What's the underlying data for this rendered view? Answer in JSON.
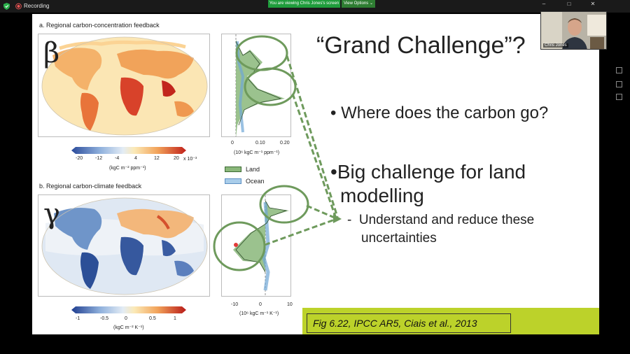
{
  "topbar": {
    "recording_label": "Recording",
    "viewing_banner": "You are viewing Chris Jones's screen",
    "view_options_label": "View Options ⌄"
  },
  "participant": {
    "name": "Chris Jones"
  },
  "slide": {
    "panel_a": {
      "title": "a. Regional carbon-concentration feedback",
      "greek": "β",
      "colorbar_ticks": [
        "-20",
        "-12",
        "-4",
        "4",
        "12",
        "20"
      ],
      "colorbar_scale": "x 10⁻³",
      "colorbar_unit": "(kgC m⁻² ppm⁻¹)",
      "lat_ticks": [
        "0",
        "0.10",
        "0.20"
      ],
      "lat_unit": "(10⁶ kgC m⁻¹ ppm⁻¹)"
    },
    "panel_b": {
      "title": "b. Regional carbon-climate feedback",
      "greek": "γ",
      "colorbar_ticks": [
        "-1",
        "-0.5",
        "0",
        "0.5",
        "1"
      ],
      "colorbar_unit": "(kgC m⁻² K⁻¹)",
      "lat_ticks": [
        "-10",
        "0",
        "10"
      ],
      "lat_unit": "(10⁶ kgC m⁻¹ K⁻¹)"
    },
    "legend": {
      "land": "Land",
      "ocean": "Ocean",
      "land_color": "#7fae6f",
      "ocean_color": "#a9cdea"
    },
    "title": "“Grand Challenge”?",
    "bullet_1": "Where does the carbon go?",
    "bullet_2_line1": "Big challenge for land",
    "bullet_2_line2": "modelling",
    "sub_bullet_line1": "Understand and reduce these",
    "sub_bullet_line2": "uncertainties",
    "citation": "Fig 6.22, IPCC AR5, Ciais et al., 2013",
    "colors": {
      "accent_band": "#bcd22a",
      "highlight_green": "#6e9a5c"
    }
  }
}
